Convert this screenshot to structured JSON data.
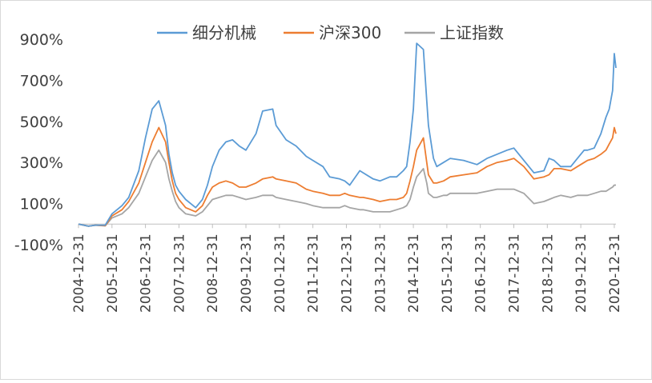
{
  "chart_data": {
    "type": "line",
    "title": "",
    "xlabel": "",
    "ylabel": "",
    "y_unit": "%",
    "ylim": [
      -100,
      900
    ],
    "yticks": [
      "900%",
      "700%",
      "500%",
      "300%",
      "100%",
      "-100%"
    ],
    "ytick_values": [
      900,
      700,
      500,
      300,
      100,
      -100
    ],
    "x_tick_labels": [
      "2004-12-31",
      "2005-12-31",
      "2006-12-31",
      "2007-12-31",
      "2008-12-31",
      "2009-12-31",
      "2010-12-31",
      "2011-12-31",
      "2012-12-31",
      "2013-12-31",
      "2014-12-31",
      "2015-12-31",
      "2016-12-31",
      "2017-12-31",
      "2018-12-31",
      "2019-12-31",
      "2020-12-31"
    ],
    "xlim": [
      2005.0,
      2021.05
    ],
    "legend_position": "top",
    "x": [
      2005.0,
      2005.3,
      2005.5,
      2005.8,
      2006.0,
      2006.3,
      2006.5,
      2006.8,
      2007.0,
      2007.2,
      2007.4,
      2007.6,
      2007.7,
      2007.8,
      2007.9,
      2008.0,
      2008.2,
      2008.5,
      2008.7,
      2008.85,
      2009.0,
      2009.2,
      2009.4,
      2009.6,
      2009.8,
      2010.0,
      2010.3,
      2010.5,
      2010.8,
      2010.9,
      2011.2,
      2011.5,
      2011.8,
      2012.0,
      2012.3,
      2012.5,
      2012.8,
      2012.95,
      2013.1,
      2013.4,
      2013.5,
      2013.8,
      2014.0,
      2014.3,
      2014.5,
      2014.7,
      2014.8,
      2014.9,
      2015.0,
      2015.1,
      2015.3,
      2015.4,
      2015.45,
      2015.6,
      2015.7,
      2015.9,
      2016.0,
      2016.1,
      2016.5,
      2016.9,
      2017.2,
      2017.5,
      2017.8,
      2018.0,
      2018.3,
      2018.6,
      2018.9,
      2019.05,
      2019.2,
      2019.4,
      2019.7,
      2019.9,
      2020.1,
      2020.2,
      2020.4,
      2020.6,
      2020.75,
      2020.85,
      2020.95,
      2021.0,
      2021.05
    ],
    "series": [
      {
        "name": "细分机械",
        "color": "#5b9bd5",
        "values": [
          0,
          -10,
          -5,
          -5,
          50,
          90,
          130,
          260,
          420,
          560,
          600,
          480,
          340,
          250,
          190,
          160,
          120,
          80,
          120,
          190,
          280,
          360,
          400,
          410,
          380,
          360,
          440,
          550,
          560,
          480,
          410,
          380,
          330,
          310,
          280,
          230,
          220,
          210,
          190,
          260,
          250,
          220,
          210,
          230,
          230,
          260,
          280,
          400,
          560,
          880,
          850,
          600,
          480,
          320,
          280,
          300,
          310,
          320,
          310,
          290,
          320,
          340,
          360,
          370,
          310,
          250,
          260,
          320,
          310,
          280,
          280,
          320,
          360,
          360,
          370,
          440,
          520,
          560,
          650,
          830,
          760
        ],
        "values_note": "approximate, read from gridlines"
      },
      {
        "name": "沪深300",
        "color": "#ed7d31",
        "values": [
          0,
          -10,
          -5,
          -8,
          40,
          70,
          110,
          200,
          300,
          400,
          470,
          400,
          300,
          210,
          150,
          120,
          80,
          60,
          90,
          140,
          180,
          200,
          210,
          200,
          180,
          180,
          200,
          220,
          230,
          220,
          210,
          200,
          170,
          160,
          150,
          140,
          140,
          150,
          140,
          130,
          130,
          120,
          110,
          120,
          120,
          130,
          150,
          210,
          280,
          360,
          420,
          300,
          240,
          200,
          200,
          210,
          220,
          230,
          240,
          250,
          280,
          300,
          310,
          320,
          280,
          220,
          230,
          240,
          270,
          270,
          260,
          280,
          300,
          310,
          320,
          340,
          360,
          390,
          420,
          470,
          440
        ],
        "values_note": "approximate, read from gridlines"
      },
      {
        "name": "上证指数",
        "color": "#a5a5a5",
        "values": [
          0,
          -10,
          -5,
          -8,
          30,
          50,
          80,
          150,
          230,
          310,
          360,
          300,
          220,
          160,
          110,
          80,
          50,
          40,
          60,
          90,
          120,
          130,
          140,
          140,
          130,
          120,
          130,
          140,
          140,
          130,
          120,
          110,
          100,
          90,
          80,
          80,
          80,
          90,
          80,
          70,
          70,
          60,
          60,
          60,
          70,
          80,
          90,
          120,
          180,
          230,
          270,
          200,
          150,
          130,
          130,
          140,
          140,
          150,
          150,
          150,
          160,
          170,
          170,
          170,
          150,
          100,
          110,
          120,
          130,
          140,
          130,
          140,
          140,
          140,
          150,
          160,
          160,
          170,
          180,
          190,
          190
        ],
        "values_note": "approximate, read from gridlines"
      }
    ]
  }
}
